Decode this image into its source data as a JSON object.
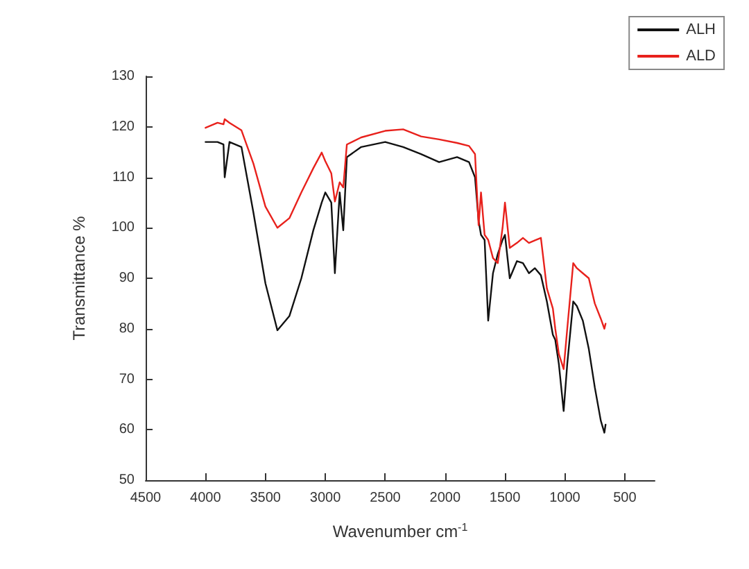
{
  "chart_data": {
    "type": "line",
    "xlabel": "Wavenumber cm$^{-1}$",
    "ylabel": "Transmittance %",
    "xlim": [
      4500,
      250
    ],
    "xticks": [
      4500,
      4000,
      3500,
      3000,
      2500,
      2000,
      1500,
      1000,
      500
    ],
    "ylim": [
      50,
      130
    ],
    "yticks": [
      50,
      60,
      70,
      80,
      90,
      100,
      110,
      120,
      130
    ],
    "grid": false,
    "legend": "top right",
    "marker": "none",
    "line_style": "solid",
    "x": [
      4000,
      3900,
      3850,
      3840,
      3800,
      3700,
      3600,
      3500,
      3400,
      3300,
      3200,
      3100,
      3030,
      3000,
      2950,
      2920,
      2880,
      2850,
      2820,
      2700,
      2500,
      2350,
      2200,
      2050,
      1900,
      1800,
      1750,
      1720,
      1700,
      1670,
      1640,
      1600,
      1560,
      1520,
      1500,
      1460,
      1400,
      1350,
      1300,
      1250,
      1200,
      1150,
      1100,
      1080,
      1050,
      1010,
      980,
      930,
      900,
      850,
      800,
      750,
      700,
      670,
      660
    ],
    "series": [
      {
        "name": "ALH",
        "color": "#111111",
        "values": [
          117,
          117,
          116.5,
          110,
          117,
          116,
          103,
          89,
          79.7,
          82.5,
          90,
          99.5,
          105,
          107,
          105,
          91,
          107,
          99.5,
          114,
          116,
          117,
          116,
          114.6,
          113,
          114,
          113,
          110,
          101.4,
          98.6,
          97.6,
          81.6,
          91,
          94.8,
          97.6,
          98.6,
          90,
          93.4,
          93,
          91,
          92,
          90.6,
          85.4,
          78.8,
          77.8,
          73,
          63.7,
          73,
          85.4,
          84.5,
          81.6,
          76,
          68.4,
          61.8,
          59.4,
          61
        ]
      },
      {
        "name": "ALD",
        "color": "#e8211c",
        "values": [
          119.8,
          120.8,
          120.5,
          121.5,
          120.8,
          119.3,
          112.7,
          104.2,
          100,
          101.9,
          107,
          111.8,
          114.9,
          113.2,
          110.8,
          105.2,
          109,
          108,
          116.5,
          117.9,
          119.2,
          119.5,
          118.1,
          117.5,
          116.8,
          116.2,
          114.6,
          100.5,
          107,
          98.6,
          97.6,
          94,
          93,
          100,
          105,
          96,
          97,
          98,
          97,
          97.5,
          98,
          88,
          84,
          80,
          75,
          72,
          80,
          93,
          92,
          91,
          90,
          85,
          82,
          80,
          81
        ]
      }
    ]
  }
}
